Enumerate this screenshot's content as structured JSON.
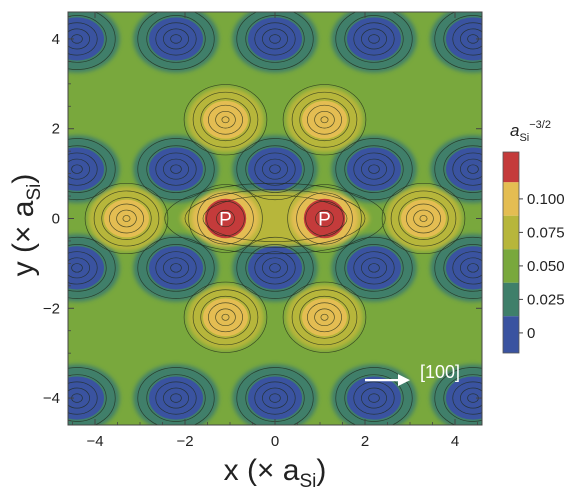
{
  "chart_data": {
    "type": "contour",
    "xlabel": {
      "main": "x (× a",
      "sub": "Si",
      "close": ")"
    },
    "ylabel": {
      "main": "y (× a",
      "sub": "Si",
      "close": ")"
    },
    "xlim": [
      -4.6,
      4.6
    ],
    "ylim": [
      -4.6,
      4.6
    ],
    "x_ticks": [
      -4,
      -2,
      0,
      2,
      4
    ],
    "y_ticks": [
      -4,
      -2,
      0,
      2,
      4
    ],
    "x_tick_labels": [
      "−4",
      "−2",
      "0",
      "2",
      "4"
    ],
    "y_tick_labels": [
      "−4",
      "−2",
      "0",
      "2",
      "4"
    ],
    "colorbar": {
      "unit": {
        "base": "a",
        "sub": "Si",
        "sup": "−3/2"
      },
      "range": [
        -0.015,
        0.135
      ],
      "ticks": [
        0,
        0.025,
        0.05,
        0.075,
        0.1
      ],
      "tick_labels": [
        "0",
        "0.025",
        "0.050",
        "0.075",
        "0.100"
      ],
      "bands": [
        {
          "from": -0.015,
          "to": 0.0125,
          "color": "#3a53a0"
        },
        {
          "from": 0.0125,
          "to": 0.0375,
          "color": "#3f7f6a"
        },
        {
          "from": 0.0375,
          "to": 0.0625,
          "color": "#79a83d"
        },
        {
          "from": 0.0625,
          "to": 0.0875,
          "color": "#b7b63b"
        },
        {
          "from": 0.0875,
          "to": 0.1125,
          "color": "#e4bd52"
        },
        {
          "from": 0.1125,
          "to": 0.135,
          "color": "#c43b3b"
        }
      ]
    },
    "features": {
      "donor_peaks": [
        {
          "label": "P",
          "x": -1.1,
          "y": 0
        },
        {
          "label": "P",
          "x": 1.1,
          "y": 0
        }
      ],
      "yellow_maxima": [
        {
          "x": -1.1,
          "y": 2.2
        },
        {
          "x": 1.1,
          "y": 2.2
        },
        {
          "x": -1.1,
          "y": -2.2
        },
        {
          "x": 1.1,
          "y": -2.2
        },
        {
          "x": -3.3,
          "y": 0
        },
        {
          "x": 3.3,
          "y": 0
        }
      ],
      "blue_minima": [
        {
          "x": -4.4,
          "y": 4.0
        },
        {
          "x": -2.2,
          "y": 4.0
        },
        {
          "x": 0,
          "y": 4.0
        },
        {
          "x": 2.2,
          "y": 4.0
        },
        {
          "x": 4.4,
          "y": 4.0
        },
        {
          "x": -4.4,
          "y": 1.1
        },
        {
          "x": -2.2,
          "y": 1.1
        },
        {
          "x": 0,
          "y": 1.1
        },
        {
          "x": 2.2,
          "y": 1.1
        },
        {
          "x": 4.4,
          "y": 1.1
        },
        {
          "x": -4.4,
          "y": -1.1
        },
        {
          "x": -2.2,
          "y": -1.1
        },
        {
          "x": 0,
          "y": -1.1
        },
        {
          "x": 2.2,
          "y": -1.1
        },
        {
          "x": 4.4,
          "y": -1.1
        },
        {
          "x": -4.4,
          "y": -4.0
        },
        {
          "x": -2.2,
          "y": -4.0
        },
        {
          "x": 0,
          "y": -4.0
        },
        {
          "x": 2.2,
          "y": -4.0
        },
        {
          "x": 4.4,
          "y": -4.0
        }
      ]
    },
    "annotations": [
      {
        "text": "[100]",
        "arrow_from": [
          2.0,
          -3.6
        ],
        "arrow_to": [
          3.0,
          -3.6
        ]
      }
    ]
  },
  "colors": {
    "blue": "#3a53a0",
    "teal": "#3f7f6a",
    "green": "#79a83d",
    "olive": "#b7b63b",
    "yellow": "#e4bd52",
    "red": "#c43b3b",
    "contour": "#1f2a1a"
  }
}
